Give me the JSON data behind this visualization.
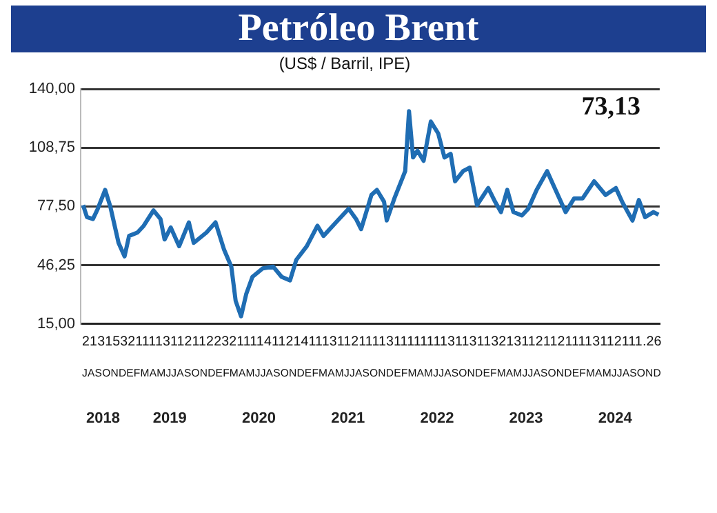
{
  "chart_data": {
    "type": "line",
    "title": "Petróleo Brent",
    "subtitle": "(US$ / Barril, IPE)",
    "annotations": [
      "73,13",
      "213153211113112112232111141121411131121111311111111311311321311211211113112111.26",
      "JASONDEFMAMJJASONDEFMAMJJASONDEFMAMJJASONDEFMAMJJASONDEFMAMJJASONDEFMAMJJASOND"
    ],
    "x": [
      "2018-07-11",
      "2018-07-27",
      "2018-08-21",
      "2018-09-10",
      "2018-10-10",
      "2018-11-01",
      "2018-12-04",
      "2018-12-29",
      "2019-01-17",
      "2019-02-19",
      "2019-03-16",
      "2019-04-25",
      "2019-05-24",
      "2019-06-10",
      "2019-07-05",
      "2019-08-09",
      "2019-09-18",
      "2019-10-08",
      "2019-11-29",
      "2020-01-06",
      "2020-02-10",
      "2020-03-10",
      "2020-03-28",
      "2020-04-19",
      "2020-05-10",
      "2020-06-05",
      "2020-07-17",
      "2020-08-30",
      "2020-10-03",
      "2020-11-07",
      "2020-12-02",
      "2021-01-15",
      "2021-02-26",
      "2021-03-23",
      "2021-05-13",
      "2021-07-04",
      "2021-08-04",
      "2021-08-25",
      "2021-09-11",
      "2021-10-06",
      "2021-10-29",
      "2021-11-27",
      "2021-12-08",
      "2022-01-09",
      "2022-02-21",
      "2022-03-08",
      "2022-03-25",
      "2022-04-12",
      "2022-05-07",
      "2022-06-06",
      "2022-07-06",
      "2022-08-01",
      "2022-08-27",
      "2022-09-14",
      "2022-10-17",
      "2022-11-13",
      "2022-12-13",
      "2023-01-29",
      "2023-02-24",
      "2023-03-20",
      "2023-04-15",
      "2023-05-10",
      "2023-06-14",
      "2023-07-10",
      "2023-08-14",
      "2023-09-26",
      "2023-10-21",
      "2023-12-11",
      "2024-01-16",
      "2024-02-19",
      "2024-04-06",
      "2024-05-23",
      "2024-07-04",
      "2024-07-30",
      "2024-09-11",
      "2024-10-07",
      "2024-11-02",
      "2024-12-06",
      "2024-12-27"
    ],
    "series": [
      {
        "color": "#1f6db3",
        "values": [
          78.2,
          71.8,
          70.8,
          76.3,
          86.3,
          77.2,
          58.1,
          50.9,
          61.8,
          63.6,
          67.2,
          75.4,
          70.8,
          59.9,
          66.3,
          56.3,
          69.0,
          58.1,
          63.6,
          69.0,
          54.5,
          45.4,
          27.2,
          19.0,
          30.8,
          40.0,
          44.5,
          45.4,
          40.0,
          38.1,
          49.0,
          56.3,
          67.2,
          61.8,
          69.0,
          76.3,
          70.8,
          65.4,
          72.7,
          83.6,
          86.3,
          80.0,
          70.0,
          81.8,
          96.3,
          128.2,
          103.6,
          107.2,
          101.8,
          122.7,
          116.4,
          103.6,
          105.5,
          90.9,
          96.3,
          98.2,
          78.2,
          87.3,
          80.0,
          74.5,
          86.3,
          74.5,
          72.7,
          76.3,
          86.3,
          96.3,
          89.1,
          74.5,
          81.8,
          81.8,
          90.9,
          83.6,
          87.3,
          80.0,
          70.0,
          80.9,
          71.8,
          74.5,
          73.1
        ]
      }
    ],
    "ylim": [
      15,
      140
    ],
    "yticks": [
      {
        "value": 15,
        "label": "15,00"
      },
      {
        "value": 46.25,
        "label": "46,25"
      },
      {
        "value": 77.5,
        "label": "77,50"
      },
      {
        "value": 108.75,
        "label": "108,75"
      },
      {
        "value": 140,
        "label": "140,00"
      }
    ],
    "xlim": [
      "2018-07",
      "2025-01"
    ],
    "xticks": [
      {
        "value": "2018-10-01",
        "label": "2018"
      },
      {
        "value": "2019-07-01",
        "label": "2019"
      },
      {
        "value": "2020-07-01",
        "label": "2020"
      },
      {
        "value": "2021-07-01",
        "label": "2021"
      },
      {
        "value": "2022-07-01",
        "label": "2022"
      },
      {
        "value": "2023-07-01",
        "label": "2023"
      },
      {
        "value": "2024-07-01",
        "label": "2024"
      }
    ],
    "grid": "y",
    "legend": false,
    "marker": "none",
    "line_style": "solid"
  }
}
